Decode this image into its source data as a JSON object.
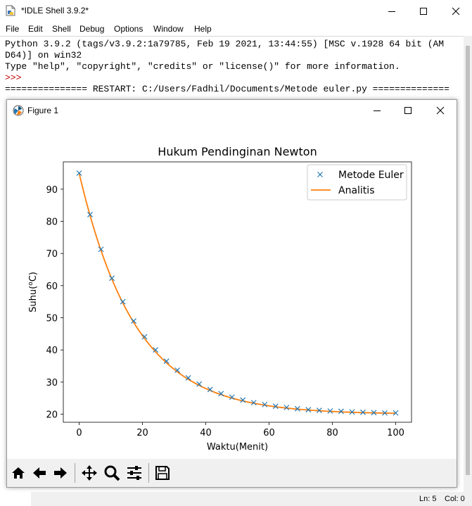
{
  "window": {
    "title": "*IDLE Shell 3.9.2*",
    "minimize_icon": "minimize-icon",
    "maximize_icon": "maximize-icon",
    "close_icon": "close-icon"
  },
  "menu": [
    "File",
    "Edit",
    "Shell",
    "Debug",
    "Options",
    "Window",
    "Help"
  ],
  "shell": {
    "lines": [
      "Python 3.9.2 (tags/v3.9.2:1a79785, Feb 19 2021, 13:44:55) [MSC v.1928 64 bit (AM",
      "D64)] on win32",
      "Type \"help\", \"copyright\", \"credits\" or \"license()\" for more information.",
      ">>> ",
      "=============== RESTART: C:/Users/Fadhil/Documents/Metode euler.py =============="
    ],
    "prompt_color": "#c00000"
  },
  "status": {
    "line": "Ln: 5",
    "col": "Col: 0"
  },
  "figure": {
    "title": "Figure 1",
    "toolbar": [
      "home-icon",
      "back-icon",
      "forward-icon",
      "pan-icon",
      "zoom-icon",
      "configure-icon",
      "save-icon"
    ]
  },
  "chart_data": {
    "type": "line",
    "title": "Hukum Pendinginan Newton",
    "xlabel": "Waktu(Menit)",
    "ylabel_base": "Suhu(",
    "ylabel_sup": "o",
    "ylabel_tail": "C)",
    "xlim": [
      -5,
      105
    ],
    "ylim": [
      17.5,
      98.5
    ],
    "xticks": [
      0,
      20,
      40,
      60,
      80,
      100
    ],
    "yticks": [
      20,
      30,
      40,
      50,
      60,
      70,
      80,
      90
    ],
    "legend_position": "top-right",
    "series": [
      {
        "name": "Metode Euler",
        "kind": "scatter",
        "color": "#1f77b4",
        "x": [
          0,
          3.45,
          6.9,
          10.34,
          13.79,
          17.24,
          20.69,
          24.14,
          27.59,
          31.03,
          34.48,
          37.93,
          41.38,
          44.83,
          48.28,
          51.72,
          55.17,
          58.62,
          62.07,
          65.52,
          68.97,
          72.41,
          75.86,
          79.31,
          82.76,
          86.21,
          89.66,
          93.1,
          96.55,
          100
        ],
        "y": [
          95,
          82.1,
          71.3,
          62.3,
          55.0,
          49.0,
          44.1,
          40.0,
          36.5,
          33.7,
          31.3,
          29.4,
          27.7,
          26.4,
          25.3,
          24.4,
          23.6,
          23.0,
          22.5,
          22.1,
          21.7,
          21.4,
          21.2,
          21.0,
          20.9,
          20.7,
          20.6,
          20.5,
          20.4,
          20.4
        ]
      },
      {
        "name": "Analitis",
        "kind": "line",
        "color": "#ff7f0e",
        "model": {
          "T_env": 20,
          "T0": 95,
          "k": 0.056
        }
      }
    ]
  }
}
